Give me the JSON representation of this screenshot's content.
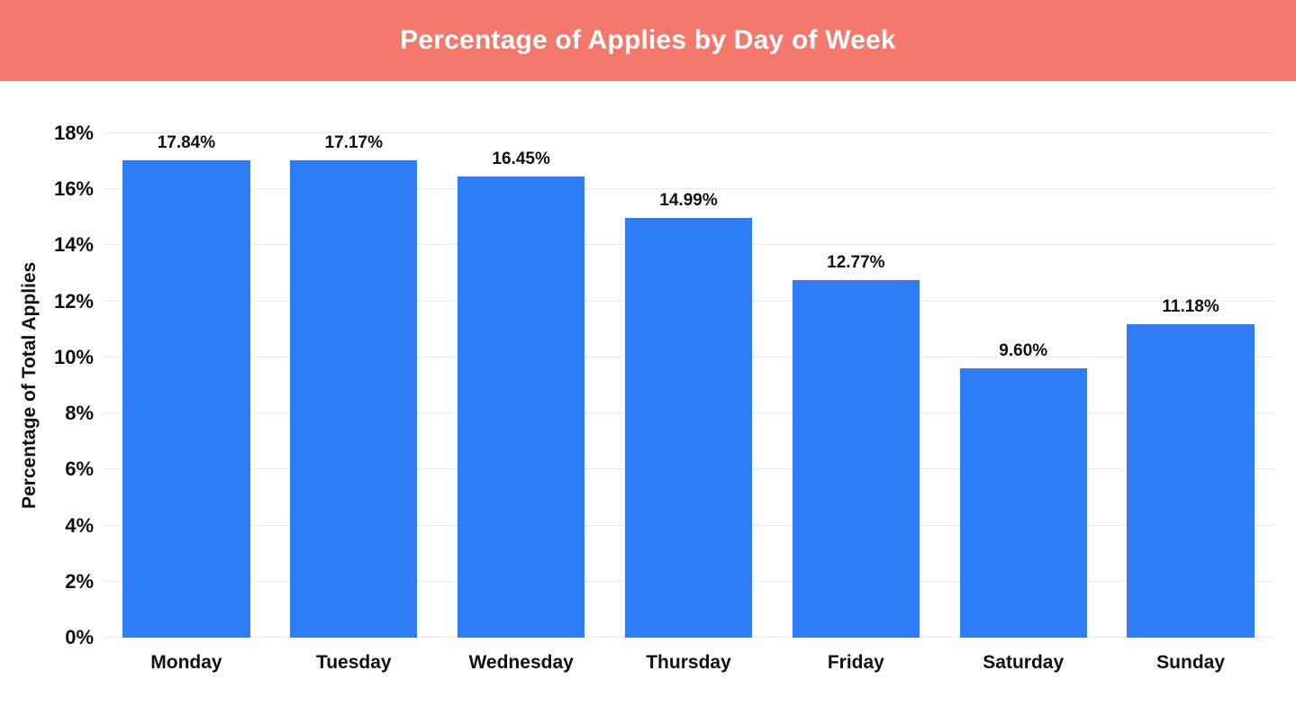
{
  "header": {
    "title": "Percentage of Applies by Day of Week",
    "background": "#f4786c"
  },
  "chart_data": {
    "type": "bar",
    "categories": [
      "Monday",
      "Tuesday",
      "Wednesday",
      "Thursday",
      "Friday",
      "Saturday",
      "Sunday"
    ],
    "values": [
      17.84,
      17.17,
      16.45,
      14.99,
      12.77,
      9.6,
      11.18
    ],
    "value_labels": [
      "17.84%",
      "17.17%",
      "16.45%",
      "14.99%",
      "12.77%",
      "9.60%",
      "11.18%"
    ],
    "title": "Percentage of Applies by Day of Week",
    "xlabel": "",
    "ylabel": "Percentage of Total Applies",
    "ylim": [
      0,
      18
    ],
    "ytick_step": 2,
    "ytick_labels": [
      "0%",
      "2%",
      "4%",
      "6%",
      "8%",
      "10%",
      "12%",
      "14%",
      "16%",
      "18%"
    ],
    "bar_color": "#2e7cf6",
    "grid": true,
    "legend_position": "none"
  }
}
